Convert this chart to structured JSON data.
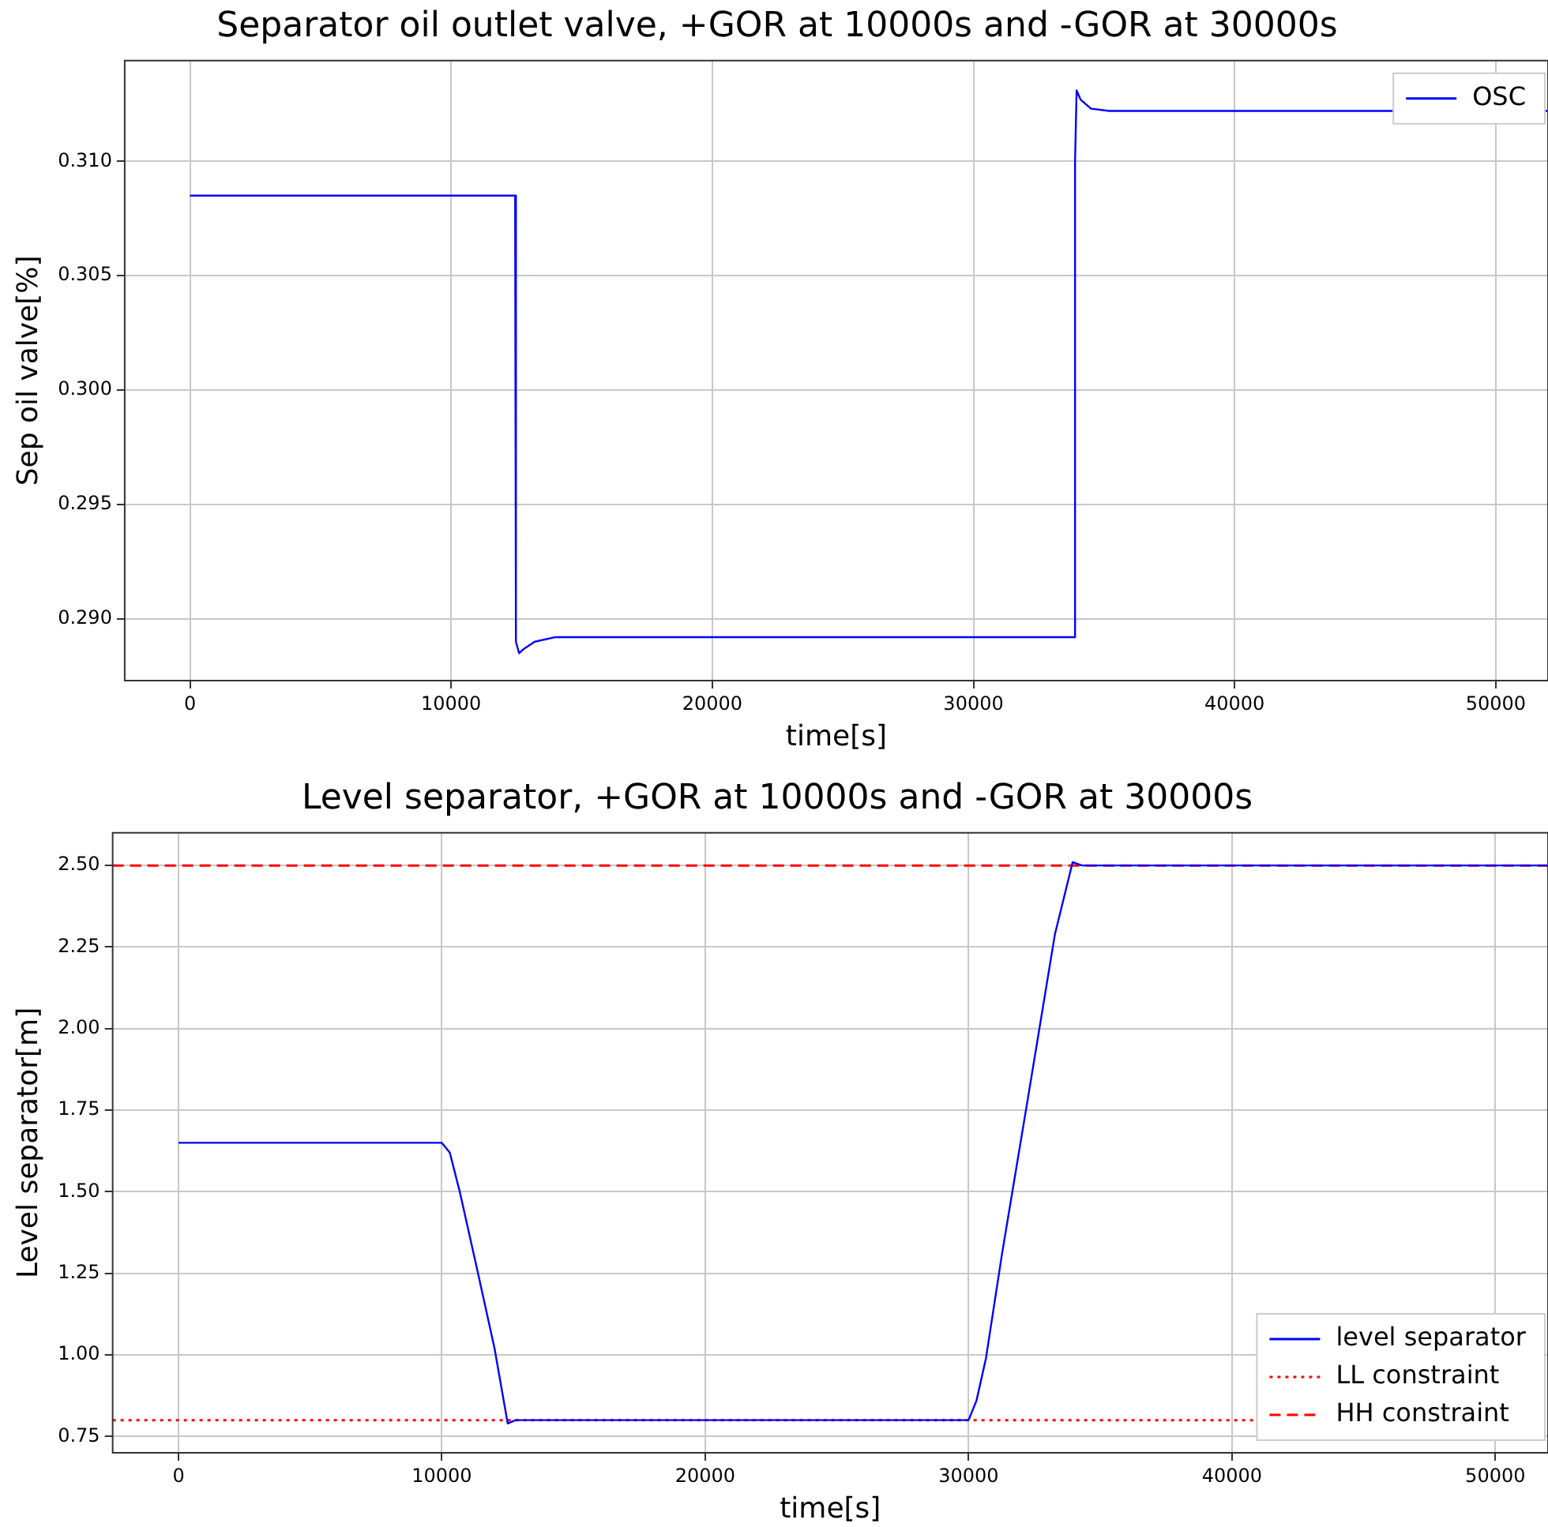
{
  "chart_data": [
    {
      "type": "line",
      "title": "Separator oil outlet valve, +GOR at 10000s and -GOR at 30000s",
      "xlabel": "time[s]",
      "ylabel": "Sep oil valve[%]",
      "xlim": [
        -2500,
        52000
      ],
      "xticks": [
        0,
        10000,
        20000,
        30000,
        40000,
        50000
      ],
      "ylim": [
        0.2873,
        0.3144
      ],
      "yticks": [
        {
          "value": 0.29,
          "label": "0.290"
        },
        0.295,
        {
          "value": 0.3,
          "label": "0.300"
        },
        0.305,
        {
          "value": 0.31,
          "label": "0.310"
        }
      ],
      "grid": true,
      "legend": "top right",
      "marker": "none",
      "series": [
        {
          "name": "OSC",
          "color": "#0000ff",
          "line_style": "solid",
          "x": [
            0,
            12450,
            12480,
            12600,
            12800,
            13200,
            14000,
            33870,
            33890,
            33950,
            34100,
            34500,
            35200,
            52000
          ],
          "values": [
            0.3085,
            0.3085,
            0.289,
            0.2885,
            0.2887,
            0.289,
            0.2892,
            0.2892,
            0.31,
            0.3131,
            0.3127,
            0.3123,
            0.3122,
            0.3122
          ]
        }
      ]
    },
    {
      "type": "line",
      "title": "Level separator, +GOR at 10000s and -GOR at 30000s",
      "xlabel": "time[s]",
      "ylabel": "Level separator[m]",
      "xlim": [
        -2500,
        52000
      ],
      "xticks": [
        0,
        10000,
        20000,
        30000,
        40000,
        50000
      ],
      "ylim": [
        0.7,
        2.6
      ],
      "yticks": [
        0.75,
        {
          "value": 1,
          "label": "1.00"
        },
        1.25,
        {
          "value": 1.5,
          "label": "1.50"
        },
        1.75,
        {
          "value": 2,
          "label": "2.00"
        },
        2.25,
        {
          "value": 2.5,
          "label": "2.50"
        }
      ],
      "grid": true,
      "legend": "bottom right",
      "marker": "none",
      "series": [
        {
          "name": "level separator",
          "color": "#0000ff",
          "line_style": "solid",
          "x": [
            0,
            10000,
            10300,
            10680,
            11290,
            12000,
            12500,
            12800,
            30000,
            30300,
            30660,
            31270,
            32280,
            33280,
            33950,
            34300,
            52000
          ],
          "values": [
            1.65,
            1.65,
            1.62,
            1.5,
            1.28,
            1.02,
            0.79,
            0.8,
            0.8,
            0.86,
            0.99,
            1.31,
            1.8,
            2.29,
            2.51,
            2.5,
            2.5
          ]
        }
      ],
      "ref_lines": [
        {
          "axis": "y",
          "value": 0.8,
          "label": "LL constraint",
          "color": "#ff0000",
          "line_style": "dotted"
        },
        {
          "axis": "y",
          "value": 2.5,
          "label": "HH constraint",
          "color": "#ff0000",
          "line_style": "dashed"
        }
      ]
    }
  ]
}
